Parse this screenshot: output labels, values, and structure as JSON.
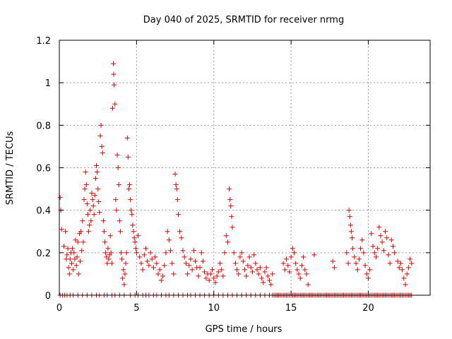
{
  "chart_data": {
    "type": "scatter",
    "title": "Day 040 of 2025, SRMTID for receiver nrmg",
    "xlabel": "GPS time / hours",
    "ylabel": "SRMTID / TECUs",
    "xlim": [
      0,
      24
    ],
    "ylim": [
      0,
      1.2
    ],
    "xticks": [
      0,
      5,
      10,
      15,
      20
    ],
    "yticks": [
      0,
      0.2,
      0.4,
      0.6,
      0.8,
      1.0,
      1.2
    ],
    "ytick_labels": [
      "0",
      "0.2",
      "0.4",
      "0.6",
      "0.8",
      "1",
      "1.2"
    ],
    "grid": true,
    "marker": "+",
    "color": "#e00000",
    "series": [
      {
        "name": "SRMTID",
        "points": [
          [
            0.05,
            0.46
          ],
          [
            0.1,
            0.4
          ],
          [
            0.15,
            0.31
          ],
          [
            0.3,
            0.23
          ],
          [
            0.4,
            0.3
          ],
          [
            0.45,
            0.17
          ],
          [
            0.5,
            0.19
          ],
          [
            0.55,
            0.22
          ],
          [
            0.6,
            0.13
          ],
          [
            0.65,
            0.1
          ],
          [
            0.7,
            0.17
          ],
          [
            0.75,
            0.2
          ],
          [
            0.8,
            0.15
          ],
          [
            0.85,
            0.22
          ],
          [
            0.9,
            0.12
          ],
          [
            0.95,
            0.2
          ],
          [
            1.0,
            0.17
          ],
          [
            1.05,
            0.26
          ],
          [
            1.1,
            0.14
          ],
          [
            1.15,
            0.18
          ],
          [
            1.2,
            0.25
          ],
          [
            1.25,
            0.1
          ],
          [
            1.3,
            0.29
          ],
          [
            1.35,
            0.16
          ],
          [
            1.4,
            0.3
          ],
          [
            1.45,
            0.21
          ],
          [
            1.5,
            0.35
          ],
          [
            1.55,
            0.25
          ],
          [
            1.6,
            0.45
          ],
          [
            1.65,
            0.5
          ],
          [
            1.7,
            0.58
          ],
          [
            1.75,
            0.52
          ],
          [
            1.8,
            0.43
          ],
          [
            1.85,
            0.38
          ],
          [
            1.9,
            0.3
          ],
          [
            1.95,
            0.33
          ],
          [
            2.0,
            0.4
          ],
          [
            2.05,
            0.35
          ],
          [
            2.1,
            0.48
          ],
          [
            2.15,
            0.45
          ],
          [
            2.2,
            0.42
          ],
          [
            2.25,
            0.38
          ],
          [
            2.3,
            0.47
          ],
          [
            2.35,
            0.55
          ],
          [
            2.4,
            0.61
          ],
          [
            2.45,
            0.58
          ],
          [
            2.5,
            0.5
          ],
          [
            2.55,
            0.44
          ],
          [
            2.6,
            0.39
          ],
          [
            2.65,
            0.75
          ],
          [
            2.7,
            0.8
          ],
          [
            2.75,
            0.7
          ],
          [
            2.8,
            0.67
          ],
          [
            2.85,
            0.35
          ],
          [
            2.9,
            0.3
          ],
          [
            2.95,
            0.25
          ],
          [
            3.0,
            0.2
          ],
          [
            3.05,
            0.18
          ],
          [
            3.1,
            0.15
          ],
          [
            3.15,
            0.22
          ],
          [
            3.2,
            0.17
          ],
          [
            3.25,
            0.19
          ],
          [
            3.3,
            0.28
          ],
          [
            3.35,
            0.2
          ],
          [
            3.4,
            0.15
          ],
          [
            3.45,
            0.88
          ],
          [
            3.5,
            1.09
          ],
          [
            3.52,
            1.04
          ],
          [
            3.55,
            0.99
          ],
          [
            3.6,
            0.9
          ],
          [
            3.65,
            0.45
          ],
          [
            3.7,
            0.4
          ],
          [
            3.75,
            0.66
          ],
          [
            3.8,
            0.6
          ],
          [
            3.85,
            0.52
          ],
          [
            3.9,
            0.35
          ],
          [
            3.95,
            0.3
          ],
          [
            4.0,
            0.2
          ],
          [
            4.05,
            0.17
          ],
          [
            4.1,
            0.08
          ],
          [
            4.15,
            0.12
          ],
          [
            4.2,
            0.05
          ],
          [
            4.25,
            0.1
          ],
          [
            4.3,
            0.15
          ],
          [
            4.35,
            0.2
          ],
          [
            4.4,
            0.74
          ],
          [
            4.45,
            0.65
          ],
          [
            4.5,
            0.5
          ],
          [
            4.55,
            0.52
          ],
          [
            4.6,
            0.45
          ],
          [
            4.65,
            0.4
          ],
          [
            4.7,
            0.38
          ],
          [
            4.75,
            0.33
          ],
          [
            4.8,
            0.3
          ],
          [
            4.85,
            0.27
          ],
          [
            4.9,
            0.25
          ],
          [
            4.95,
            0.22
          ],
          [
            5.0,
            0.2
          ],
          [
            5.1,
            0.28
          ],
          [
            5.2,
            0.18
          ],
          [
            5.3,
            0.15
          ],
          [
            5.4,
            0.12
          ],
          [
            5.5,
            0.19
          ],
          [
            5.6,
            0.22
          ],
          [
            5.7,
            0.16
          ],
          [
            5.8,
            0.14
          ],
          [
            5.9,
            0.2
          ],
          [
            6.0,
            0.17
          ],
          [
            6.1,
            0.13
          ],
          [
            6.2,
            0.18
          ],
          [
            6.3,
            0.15
          ],
          [
            6.4,
            0.1
          ],
          [
            6.5,
            0.12
          ],
          [
            6.6,
            0.07
          ],
          [
            6.7,
            0.09
          ],
          [
            6.8,
            0.14
          ],
          [
            6.9,
            0.2
          ],
          [
            7.0,
            0.3
          ],
          [
            7.1,
            0.26
          ],
          [
            7.2,
            0.21
          ],
          [
            7.3,
            0.15
          ],
          [
            7.4,
            0.1
          ],
          [
            7.5,
            0.57
          ],
          [
            7.55,
            0.52
          ],
          [
            7.6,
            0.5
          ],
          [
            7.65,
            0.45
          ],
          [
            7.7,
            0.38
          ],
          [
            7.8,
            0.3
          ],
          [
            7.9,
            0.27
          ],
          [
            8.0,
            0.21
          ],
          [
            8.1,
            0.18
          ],
          [
            8.2,
            0.15
          ],
          [
            8.3,
            0.1
          ],
          [
            8.4,
            0.14
          ],
          [
            8.5,
            0.17
          ],
          [
            8.6,
            0.12
          ],
          [
            8.7,
            0.21
          ],
          [
            8.8,
            0.16
          ],
          [
            8.9,
            0.13
          ],
          [
            9.0,
            0.09
          ],
          [
            9.1,
            0.13
          ],
          [
            9.2,
            0.2
          ],
          [
            9.3,
            0.16
          ],
          [
            9.4,
            0.11
          ],
          [
            9.5,
            0.08
          ],
          [
            9.6,
            0.1
          ],
          [
            9.7,
            0.07
          ],
          [
            9.8,
            0.1
          ],
          [
            9.9,
            0.12
          ],
          [
            10.0,
            0.08
          ],
          [
            10.1,
            0.06
          ],
          [
            10.2,
            0.09
          ],
          [
            10.3,
            0.11
          ],
          [
            10.4,
            0.15
          ],
          [
            10.5,
            0.12
          ],
          [
            10.6,
            0.09
          ],
          [
            10.7,
            0.2
          ],
          [
            10.8,
            0.28
          ],
          [
            10.9,
            0.25
          ],
          [
            11.0,
            0.5
          ],
          [
            11.05,
            0.45
          ],
          [
            11.1,
            0.42
          ],
          [
            11.15,
            0.37
          ],
          [
            11.2,
            0.32
          ],
          [
            11.3,
            0.2
          ],
          [
            11.4,
            0.15
          ],
          [
            11.5,
            0.12
          ],
          [
            11.6,
            0.1
          ],
          [
            11.7,
            0.18
          ],
          [
            11.8,
            0.2
          ],
          [
            11.9,
            0.16
          ],
          [
            12.0,
            0.12
          ],
          [
            12.1,
            0.09
          ],
          [
            12.2,
            0.14
          ],
          [
            12.3,
            0.18
          ],
          [
            12.4,
            0.13
          ],
          [
            12.5,
            0.11
          ],
          [
            12.6,
            0.19
          ],
          [
            12.7,
            0.15
          ],
          [
            12.8,
            0.12
          ],
          [
            12.9,
            0.1
          ],
          [
            13.0,
            0.13
          ],
          [
            13.1,
            0.08
          ],
          [
            13.2,
            0.06
          ],
          [
            13.3,
            0.11
          ],
          [
            13.4,
            0.13
          ],
          [
            13.5,
            0.09
          ],
          [
            13.6,
            0.07
          ],
          [
            13.7,
            0.05
          ],
          [
            13.8,
            0.1
          ],
          [
            14.5,
            0.15
          ],
          [
            14.6,
            0.12
          ],
          [
            14.7,
            0.17
          ],
          [
            14.8,
            0.14
          ],
          [
            14.9,
            0.11
          ],
          [
            15.0,
            0.18
          ],
          [
            15.1,
            0.22
          ],
          [
            15.2,
            0.2
          ],
          [
            15.3,
            0.15
          ],
          [
            15.4,
            0.12
          ],
          [
            15.5,
            0.1
          ],
          [
            15.6,
            0.08
          ],
          [
            15.7,
            0.14
          ],
          [
            15.8,
            0.18
          ],
          [
            15.9,
            0.12
          ],
          [
            16.0,
            0.1
          ],
          [
            16.1,
            0.05
          ],
          [
            16.5,
            0.19
          ],
          [
            17.7,
            0.16
          ],
          [
            17.8,
            0.13
          ],
          [
            18.6,
            0.2
          ],
          [
            18.7,
            0.15
          ],
          [
            18.75,
            0.4
          ],
          [
            18.8,
            0.37
          ],
          [
            18.85,
            0.33
          ],
          [
            18.9,
            0.3
          ],
          [
            18.95,
            0.27
          ],
          [
            19.0,
            0.22
          ],
          [
            19.1,
            0.18
          ],
          [
            19.2,
            0.15
          ],
          [
            19.3,
            0.12
          ],
          [
            19.4,
            0.17
          ],
          [
            19.5,
            0.22
          ],
          [
            19.6,
            0.26
          ],
          [
            19.7,
            0.2
          ],
          [
            19.8,
            0.14
          ],
          [
            19.9,
            0.1
          ],
          [
            20.0,
            0.08
          ],
          [
            20.1,
            0.12
          ],
          [
            20.2,
            0.29
          ],
          [
            20.3,
            0.23
          ],
          [
            20.4,
            0.2
          ],
          [
            20.5,
            0.18
          ],
          [
            20.6,
            0.22
          ],
          [
            20.7,
            0.32
          ],
          [
            20.8,
            0.28
          ],
          [
            20.9,
            0.25
          ],
          [
            21.0,
            0.21
          ],
          [
            21.1,
            0.3
          ],
          [
            21.2,
            0.27
          ],
          [
            21.3,
            0.19
          ],
          [
            21.4,
            0.15
          ],
          [
            21.5,
            0.26
          ],
          [
            21.6,
            0.23
          ],
          [
            21.7,
            0.2
          ],
          [
            21.9,
            0.16
          ],
          [
            22.0,
            0.13
          ],
          [
            22.1,
            0.15
          ],
          [
            22.2,
            0.12
          ],
          [
            22.3,
            0.08
          ],
          [
            22.4,
            0.05
          ],
          [
            22.5,
            0.1
          ],
          [
            22.6,
            0.13
          ],
          [
            22.7,
            0.17
          ],
          [
            22.8,
            0.15
          ]
        ],
        "zero_points": [
          0.05,
          0.2,
          0.35,
          0.5,
          0.7,
          0.9,
          1.2,
          1.5,
          1.8,
          2.1,
          2.4,
          2.6,
          2.9,
          3.1,
          3.4,
          3.6,
          3.9,
          4.2,
          4.6,
          4.9,
          5.1,
          5.4,
          5.6,
          5.8,
          6.1,
          6.3,
          6.6,
          6.9,
          7.1,
          7.4,
          7.7,
          8.0,
          8.3,
          8.5,
          8.8,
          9.1,
          9.4,
          9.7,
          10.0,
          10.3,
          10.6,
          10.9,
          11.2,
          11.5,
          11.8,
          12.1,
          12.4,
          12.7,
          13.0,
          13.3,
          13.6,
          13.8,
          13.9,
          14.0,
          14.1,
          14.2,
          14.3,
          14.4,
          14.5,
          14.6,
          14.7,
          14.8,
          14.9,
          15.0,
          15.1,
          15.2,
          15.3,
          15.4,
          15.5,
          15.6,
          15.7,
          15.8,
          15.9,
          16.0,
          16.1,
          16.2,
          16.3,
          16.4,
          16.5,
          16.6,
          16.7,
          16.8,
          16.9,
          17.0,
          17.1,
          17.2,
          17.3,
          17.4,
          17.5,
          17.6,
          17.7,
          17.8,
          17.9,
          18.0,
          18.1,
          18.2,
          18.3,
          18.4,
          18.5,
          18.6,
          18.7,
          18.8,
          18.9,
          19.0,
          19.1,
          19.2,
          19.3,
          19.4,
          19.5,
          19.6,
          19.7,
          19.8,
          19.9,
          20.0,
          20.1,
          20.2,
          20.3,
          20.4,
          20.5,
          20.6,
          20.7,
          20.8,
          20.9,
          21.0,
          21.1,
          21.2,
          21.3,
          21.4,
          21.5,
          21.6,
          21.7,
          21.8,
          21.9,
          22.0,
          22.1,
          22.2,
          22.3,
          22.4,
          22.5,
          22.6,
          22.7,
          22.8
        ]
      }
    ]
  }
}
